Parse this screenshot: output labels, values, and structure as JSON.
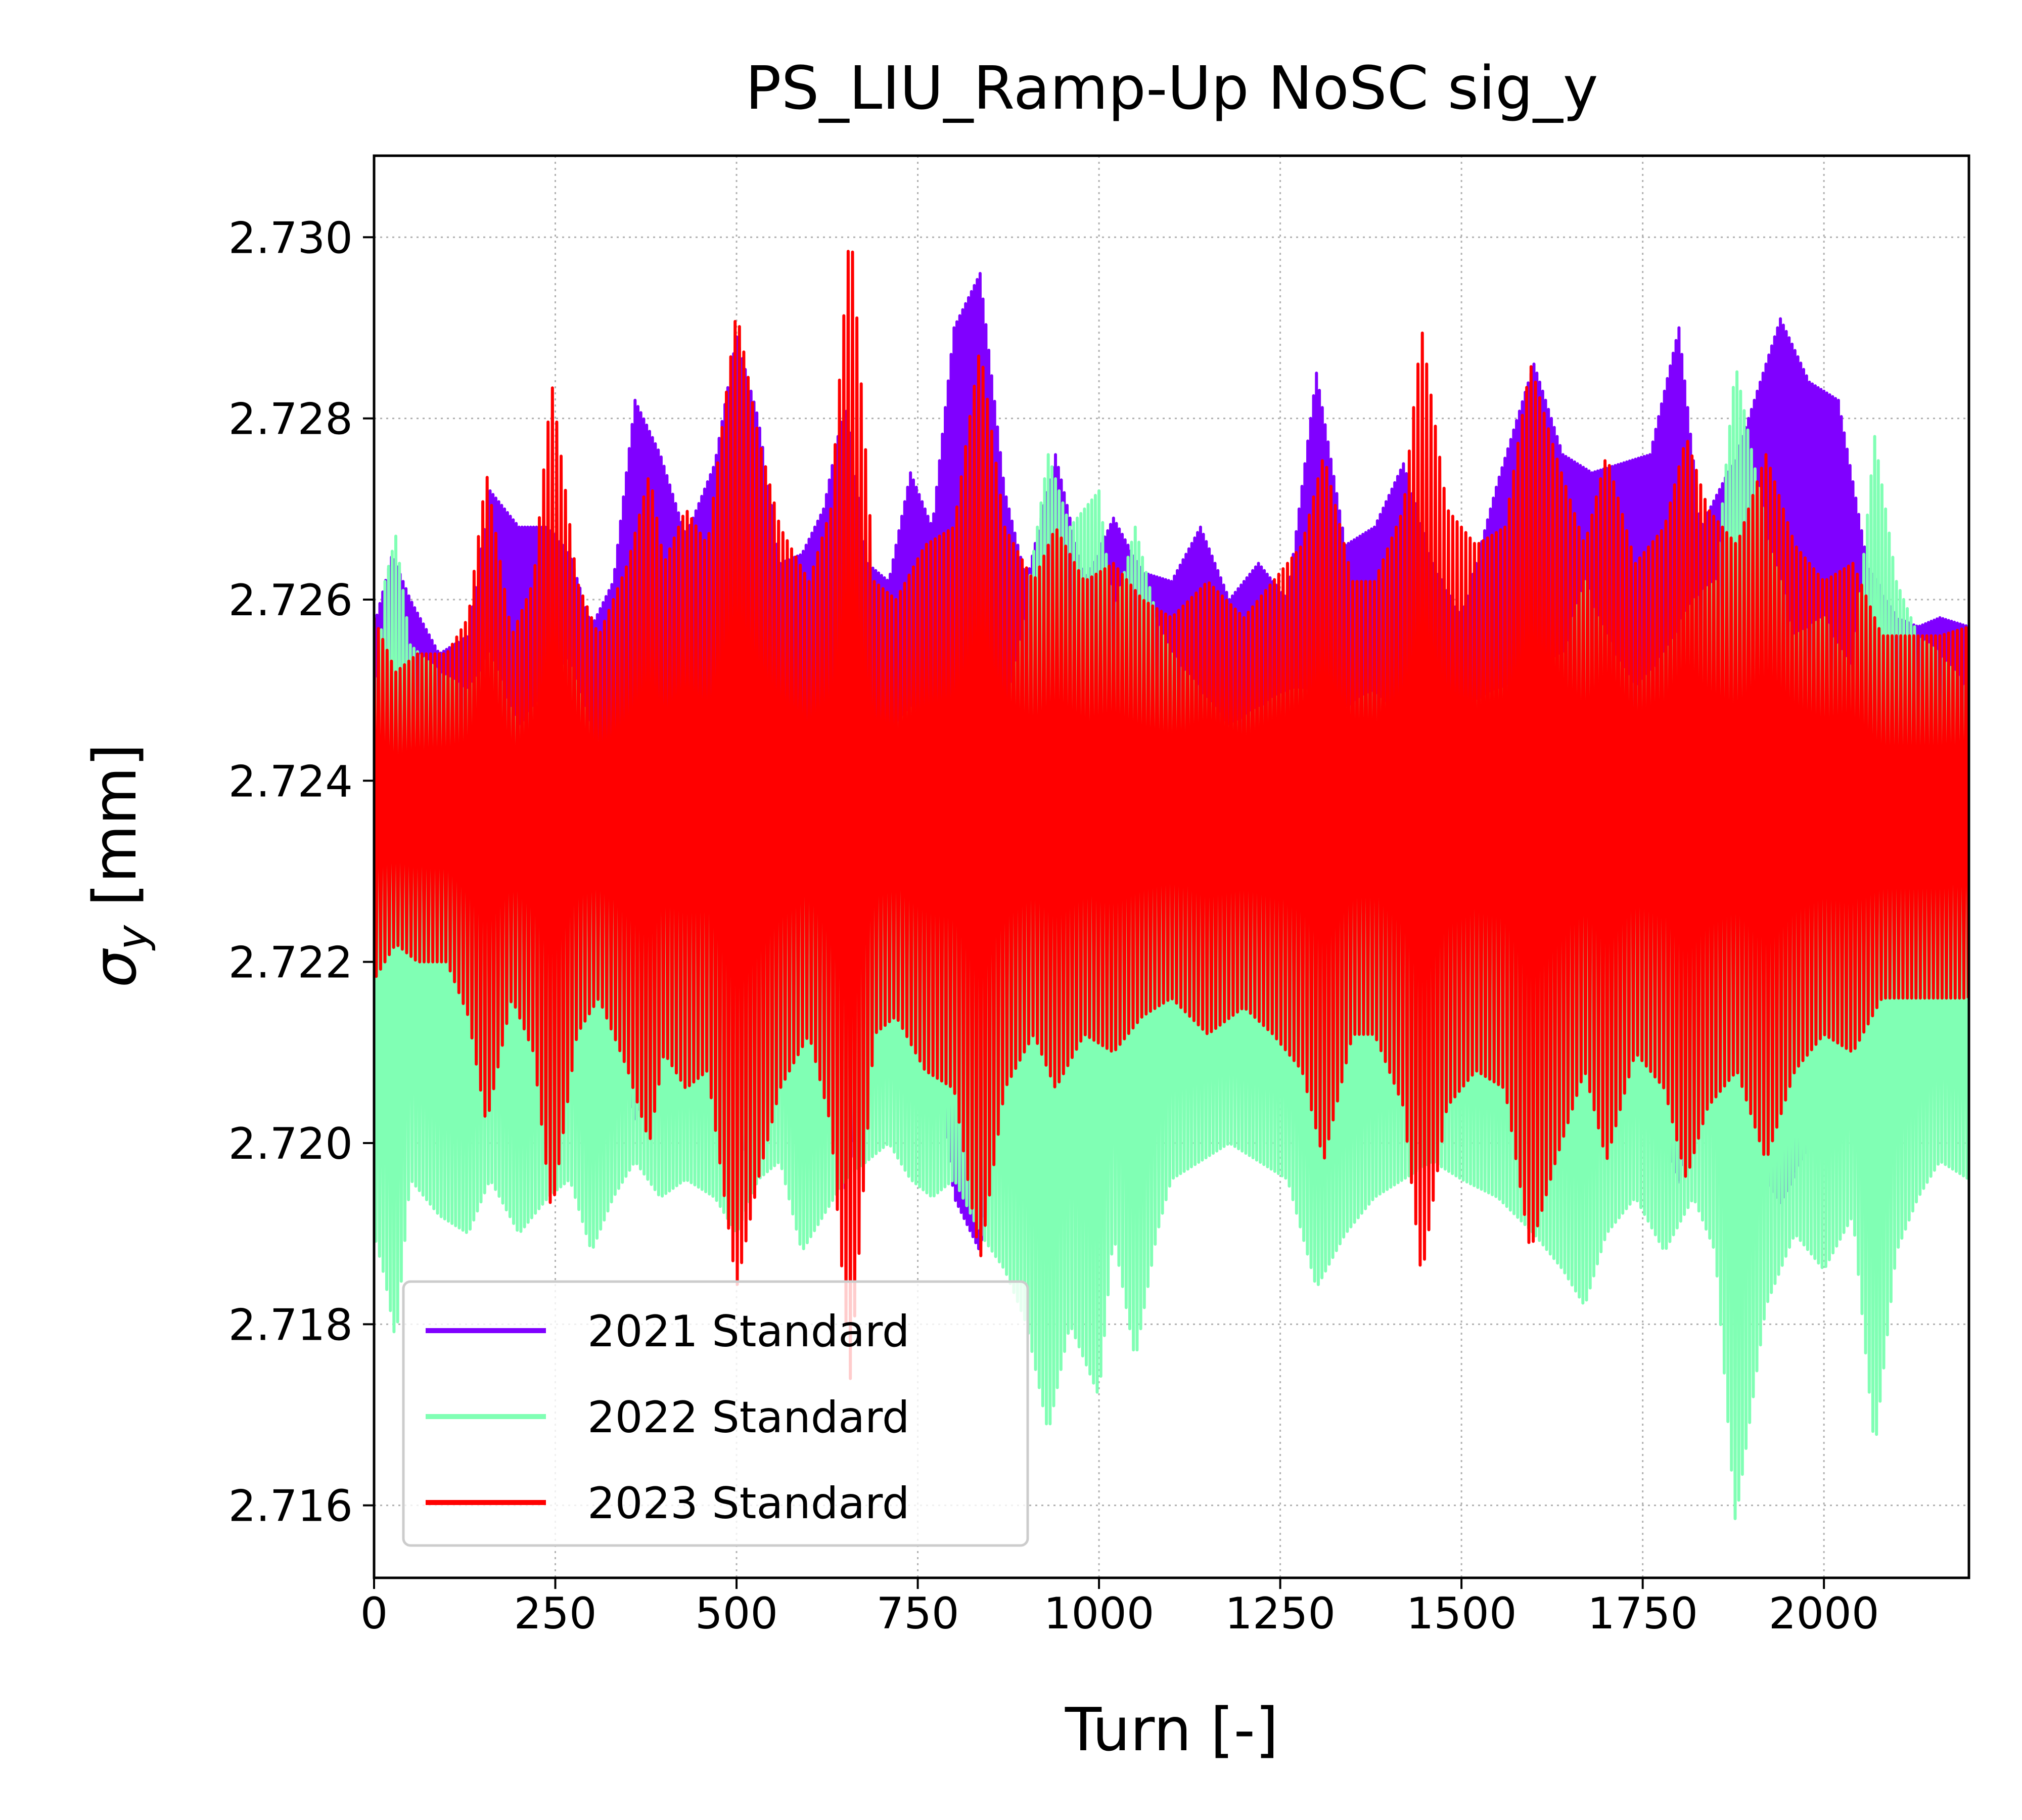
{
  "chart_data": {
    "type": "line",
    "title": "PS_LIU_Ramp-Up NoSC sig_y",
    "xlabel": "Turn [-]",
    "ylabel_symbol": "σ",
    "ylabel_subscript": "y",
    "ylabel_unit": " [mm]",
    "xlim": [
      0,
      2200
    ],
    "ylim": [
      2.7152,
      2.7309
    ],
    "xticks": [
      0,
      250,
      500,
      750,
      1000,
      1250,
      1500,
      1750,
      2000
    ],
    "xtick_labels": [
      "0",
      "250",
      "500",
      "750",
      "1000",
      "1250",
      "1500",
      "1750",
      "2000"
    ],
    "yticks": [
      2.716,
      2.718,
      2.72,
      2.722,
      2.724,
      2.726,
      2.728,
      2.73
    ],
    "ytick_labels": [
      "2.716",
      "2.718",
      "2.720",
      "2.722",
      "2.724",
      "2.726",
      "2.728",
      "2.730"
    ],
    "grid": true,
    "legend_position": "lower-left",
    "series": [
      {
        "name": "2021 Standard",
        "color": "#8000ff",
        "x": [
          0,
          25,
          50,
          90,
          130,
          160,
          200,
          240,
          270,
          300,
          330,
          360,
          395,
          430,
          470,
          500,
          530,
          560,
          590,
          620,
          650,
          680,
          710,
          740,
          770,
          800,
          836,
          870,
          900,
          940,
          980,
          1020,
          1060,
          1100,
          1140,
          1180,
          1220,
          1260,
          1300,
          1340,
          1380,
          1420,
          1460,
          1500,
          1550,
          1600,
          1640,
          1680,
          1720,
          1760,
          1800,
          1830,
          1880,
          1940,
          1980,
          2020,
          2060,
          2100,
          2130,
          2160,
          2200
        ],
        "upper": [
          2.7257,
          2.7265,
          2.726,
          2.7254,
          2.7256,
          2.7272,
          2.7268,
          2.7268,
          2.7265,
          2.7257,
          2.7262,
          2.7282,
          2.7276,
          2.7267,
          2.7275,
          2.7289,
          2.728,
          2.7264,
          2.7265,
          2.727,
          2.7282,
          2.7264,
          2.7262,
          2.7274,
          2.7268,
          2.729,
          2.7296,
          2.7272,
          2.7262,
          2.7276,
          2.7262,
          2.7269,
          2.7263,
          2.7262,
          2.7268,
          2.726,
          2.7264,
          2.726,
          2.7285,
          2.7266,
          2.7268,
          2.7275,
          2.7264,
          2.7258,
          2.7273,
          2.7286,
          2.7276,
          2.7274,
          2.7275,
          2.7276,
          2.729,
          2.7268,
          2.7276,
          2.7291,
          2.7284,
          2.7282,
          2.7264,
          2.7258,
          2.7257,
          2.7258,
          2.7257
        ],
        "lower": [
          2.722,
          2.7214,
          2.7222,
          2.722,
          2.7217,
          2.7212,
          2.7216,
          2.7216,
          2.7208,
          2.7216,
          2.7212,
          2.7202,
          2.7212,
          2.7216,
          2.7215,
          2.7195,
          2.7208,
          2.721,
          2.721,
          2.7205,
          2.7195,
          2.7208,
          2.7212,
          2.7208,
          2.7214,
          2.7194,
          2.7188,
          2.721,
          2.7214,
          2.7208,
          2.7214,
          2.7212,
          2.7215,
          2.7214,
          2.7212,
          2.7215,
          2.7213,
          2.7214,
          2.72,
          2.7212,
          2.7214,
          2.721,
          2.7214,
          2.7216,
          2.7208,
          2.7202,
          2.7205,
          2.7207,
          2.7208,
          2.7207,
          2.7195,
          2.7208,
          2.7203,
          2.7193,
          2.72,
          2.7202,
          2.7212,
          2.7215,
          2.7216,
          2.7216,
          2.7216
        ]
      },
      {
        "name": "2022 Standard",
        "color": "#80ffb4",
        "x": [
          0,
          15,
          30,
          50,
          90,
          130,
          160,
          200,
          240,
          270,
          300,
          330,
          360,
          395,
          430,
          470,
          500,
          530,
          560,
          590,
          620,
          650,
          680,
          710,
          740,
          770,
          800,
          836,
          870,
          900,
          930,
          960,
          1000,
          1020,
          1050,
          1080,
          1100,
          1140,
          1180,
          1220,
          1260,
          1300,
          1340,
          1380,
          1420,
          1460,
          1500,
          1550,
          1600,
          1640,
          1670,
          1700,
          1740,
          1780,
          1820,
          1850,
          1878,
          1920,
          1960,
          2000,
          2040,
          2070,
          2100,
          2130,
          2160,
          2200
        ],
        "upper": [
          2.7246,
          2.7262,
          2.7267,
          2.7255,
          2.7252,
          2.725,
          2.7254,
          2.7246,
          2.725,
          2.7254,
          2.7245,
          2.7243,
          2.7248,
          2.7248,
          2.7245,
          2.7248,
          2.7246,
          2.7244,
          2.7248,
          2.7245,
          2.7243,
          2.7246,
          2.7244,
          2.7245,
          2.7248,
          2.7246,
          2.7248,
          2.725,
          2.7246,
          2.726,
          2.7276,
          2.7268,
          2.7272,
          2.7258,
          2.7268,
          2.7258,
          2.7254,
          2.725,
          2.7246,
          2.7248,
          2.725,
          2.725,
          2.7248,
          2.725,
          2.7246,
          2.7244,
          2.7248,
          2.725,
          2.7252,
          2.7254,
          2.7262,
          2.7256,
          2.725,
          2.7254,
          2.726,
          2.7262,
          2.7286,
          2.7268,
          2.7256,
          2.7258,
          2.7252,
          2.7278,
          2.7262,
          2.7256,
          2.7254,
          2.725
        ],
        "lower": [
          2.719,
          2.7185,
          2.7178,
          2.7196,
          2.7192,
          2.719,
          2.7196,
          2.719,
          2.7194,
          2.7196,
          2.7188,
          2.7194,
          2.7198,
          2.7194,
          2.7196,
          2.7194,
          2.719,
          2.7196,
          2.7198,
          2.7188,
          2.7192,
          2.7196,
          2.7198,
          2.72,
          2.7196,
          2.7194,
          2.7196,
          2.719,
          2.7186,
          2.718,
          2.7168,
          2.718,
          2.7172,
          2.719,
          2.7176,
          2.719,
          2.7196,
          2.7198,
          2.72,
          2.7198,
          2.7196,
          2.7184,
          2.719,
          2.7194,
          2.7196,
          2.7198,
          2.7196,
          2.7194,
          2.719,
          2.7186,
          2.7182,
          2.719,
          2.7194,
          2.7188,
          2.7194,
          2.7188,
          2.7158,
          2.7182,
          2.719,
          2.7186,
          2.7192,
          2.7166,
          2.7188,
          2.7194,
          2.7198,
          2.7196
        ]
      },
      {
        "name": "2023 Standard",
        "color": "#ff0000",
        "x": [
          0,
          30,
          60,
          100,
          130,
          155,
          190,
          220,
          245,
          280,
          310,
          350,
          380,
          400,
          430,
          460,
          500,
          530,
          560,
          600,
          630,
          657,
          690,
          720,
          760,
          800,
          836,
          870,
          910,
          940,
          980,
          1020,
          1060,
          1100,
          1150,
          1200,
          1240,
          1280,
          1310,
          1350,
          1380,
          1420,
          1445,
          1480,
          1520,
          1560,
          1595,
          1630,
          1670,
          1700,
          1740,
          1780,
          1810,
          1840,
          1880,
          1920,
          1960,
          2000,
          2040,
          2080,
          2120,
          2160,
          2200
        ],
        "upper": [
          2.7258,
          2.7252,
          2.7254,
          2.7254,
          2.7258,
          2.7274,
          2.7256,
          2.7262,
          2.7284,
          2.7262,
          2.7256,
          2.7264,
          2.7274,
          2.7264,
          2.727,
          2.7266,
          2.7292,
          2.7278,
          2.7268,
          2.7262,
          2.727,
          2.7302,
          2.7262,
          2.726,
          2.7266,
          2.7268,
          2.7288,
          2.7268,
          2.7262,
          2.7268,
          2.7262,
          2.7264,
          2.726,
          2.7258,
          2.7262,
          2.7258,
          2.7262,
          2.7266,
          2.7276,
          2.7262,
          2.7262,
          2.727,
          2.729,
          2.727,
          2.7266,
          2.7268,
          2.7286,
          2.7276,
          2.7266,
          2.7276,
          2.7264,
          2.7268,
          2.7278,
          2.727,
          2.7266,
          2.7276,
          2.7266,
          2.7262,
          2.7264,
          2.7256,
          2.7256,
          2.7256,
          2.7257
        ],
        "lower": [
          2.7218,
          2.7222,
          2.722,
          2.722,
          2.7214,
          2.7202,
          2.7216,
          2.721,
          2.7192,
          2.7212,
          2.7216,
          2.7208,
          2.72,
          2.721,
          2.7206,
          2.7208,
          2.7184,
          2.7196,
          2.7206,
          2.7212,
          2.7202,
          2.7174,
          2.7212,
          2.7214,
          2.7208,
          2.7206,
          2.7187,
          2.7206,
          2.7212,
          2.7206,
          2.7212,
          2.721,
          2.7214,
          2.7216,
          2.7212,
          2.7215,
          2.7212,
          2.7208,
          2.7198,
          2.7212,
          2.7212,
          2.7204,
          2.7185,
          2.7204,
          2.7208,
          2.7206,
          2.7188,
          2.7198,
          2.7208,
          2.7198,
          2.721,
          2.7206,
          2.7196,
          2.7204,
          2.7208,
          2.7198,
          2.7208,
          2.7212,
          2.721,
          2.7216,
          2.7216,
          2.7216,
          2.7216
        ]
      }
    ]
  }
}
